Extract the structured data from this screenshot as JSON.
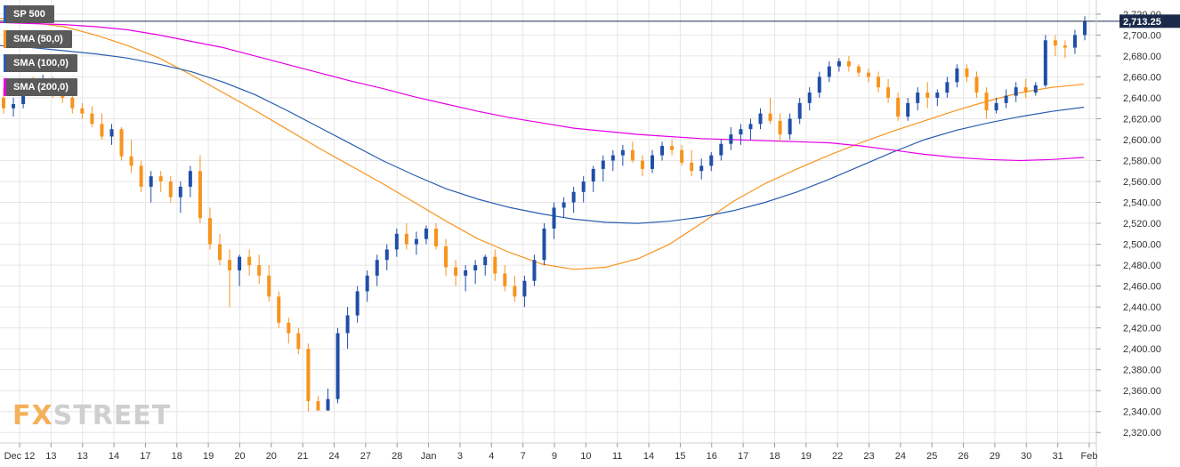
{
  "legend": {
    "items": [
      {
        "label": "SP 500",
        "color": "#2a5db0"
      },
      {
        "label": "SMA (50,0)",
        "color": "#f7941d"
      },
      {
        "label": "SMA (100,0)",
        "color": "#2a5db0"
      },
      {
        "label": "SMA (200,0)",
        "color": "#e600e6"
      }
    ]
  },
  "brand": {
    "part1": "FX",
    "part2": "STREET"
  },
  "price_tag": {
    "label": "2,713.25"
  },
  "colors": {
    "up_candle": "#1f4fa8",
    "down_candle": "#f7941d",
    "sma50": "#f7941d",
    "sma100": "#2a5db0",
    "sma200": "#e600e6",
    "grid": "#e6e6e6",
    "axis_text": "#333333",
    "price_line": "#1b2a4a",
    "price_tag_bg": "#1b2a4a"
  },
  "chart_data": {
    "type": "candlestick",
    "title": "SP 500",
    "timeframe_note": "intraday candles",
    "ylim": [
      2310,
      2725
    ],
    "y_ticks": [
      2320,
      2340,
      2360,
      2380,
      2400,
      2420,
      2440,
      2460,
      2480,
      2500,
      2520,
      2540,
      2560,
      2580,
      2600,
      2620,
      2640,
      2660,
      2680,
      2700,
      2720
    ],
    "y_tick_labels": [
      "2,320.00",
      "2,340.00",
      "2,360.00",
      "2,380.00",
      "2,400.00",
      "2,420.00",
      "2,440.00",
      "2,460.00",
      "2,480.00",
      "2,500.00",
      "2,520.00",
      "2,540.00",
      "2,560.00",
      "2,580.00",
      "2,600.00",
      "2,620.00",
      "2,640.00",
      "2,660.00",
      "2,680.00",
      "2,700.00",
      "2,720.00"
    ],
    "x_labels": [
      "Dec 12",
      "13",
      "13",
      "14",
      "17",
      "18",
      "19",
      "20",
      "20",
      "21",
      "24",
      "27",
      "28",
      "Jan",
      "3",
      "4",
      "7",
      "9",
      "10",
      "11",
      "14",
      "15",
      "16",
      "17",
      "18",
      "19",
      "22",
      "23",
      "24",
      "25",
      "26",
      "29",
      "30",
      "31",
      "Feb"
    ],
    "last_price": 2713.25,
    "series": [
      {
        "name": "SP 500",
        "kind": "ohlc",
        "values": [
          [
            2640,
            2650,
            2625,
            2630
          ],
          [
            2630,
            2640,
            2622,
            2634
          ],
          [
            2634,
            2655,
            2630,
            2650
          ],
          [
            2650,
            2660,
            2642,
            2648
          ],
          [
            2648,
            2662,
            2645,
            2655
          ],
          [
            2655,
            2660,
            2640,
            2645
          ],
          [
            2645,
            2652,
            2635,
            2640
          ],
          [
            2640,
            2645,
            2625,
            2630
          ],
          [
            2630,
            2635,
            2620,
            2625
          ],
          [
            2625,
            2632,
            2612,
            2615
          ],
          [
            2615,
            2625,
            2600,
            2603
          ],
          [
            2603,
            2615,
            2595,
            2610
          ],
          [
            2610,
            2612,
            2580,
            2584
          ],
          [
            2584,
            2600,
            2568,
            2575
          ],
          [
            2575,
            2580,
            2550,
            2555
          ],
          [
            2555,
            2570,
            2540,
            2565
          ],
          [
            2565,
            2570,
            2550,
            2560
          ],
          [
            2560,
            2565,
            2540,
            2545
          ],
          [
            2545,
            2560,
            2530,
            2555
          ],
          [
            2555,
            2575,
            2545,
            2570
          ],
          [
            2570,
            2585,
            2520,
            2525
          ],
          [
            2525,
            2535,
            2495,
            2500
          ],
          [
            2500,
            2510,
            2480,
            2485
          ],
          [
            2485,
            2495,
            2440,
            2475
          ],
          [
            2475,
            2490,
            2460,
            2488
          ],
          [
            2488,
            2495,
            2470,
            2480
          ],
          [
            2480,
            2490,
            2462,
            2470
          ],
          [
            2470,
            2480,
            2445,
            2450
          ],
          [
            2450,
            2455,
            2420,
            2425
          ],
          [
            2425,
            2430,
            2405,
            2415
          ],
          [
            2415,
            2420,
            2395,
            2400
          ],
          [
            2400,
            2405,
            2340,
            2350
          ],
          [
            2350,
            2355,
            2341,
            2341
          ],
          [
            2341,
            2362,
            2341,
            2352
          ],
          [
            2352,
            2420,
            2348,
            2415
          ],
          [
            2415,
            2440,
            2400,
            2432
          ],
          [
            2432,
            2460,
            2425,
            2455
          ],
          [
            2455,
            2475,
            2445,
            2470
          ],
          [
            2470,
            2490,
            2460,
            2485
          ],
          [
            2485,
            2500,
            2475,
            2495
          ],
          [
            2495,
            2515,
            2488,
            2510
          ],
          [
            2510,
            2520,
            2495,
            2500
          ],
          [
            2500,
            2512,
            2490,
            2505
          ],
          [
            2505,
            2518,
            2500,
            2515
          ],
          [
            2515,
            2520,
            2495,
            2498
          ],
          [
            2498,
            2505,
            2470,
            2478
          ],
          [
            2478,
            2485,
            2460,
            2470
          ],
          [
            2470,
            2480,
            2455,
            2475
          ],
          [
            2475,
            2485,
            2462,
            2480
          ],
          [
            2480,
            2490,
            2470,
            2488
          ],
          [
            2488,
            2495,
            2465,
            2472
          ],
          [
            2472,
            2480,
            2455,
            2460
          ],
          [
            2460,
            2470,
            2445,
            2450
          ],
          [
            2450,
            2470,
            2440,
            2465
          ],
          [
            2465,
            2490,
            2460,
            2485
          ],
          [
            2485,
            2520,
            2480,
            2515
          ],
          [
            2515,
            2540,
            2505,
            2535
          ],
          [
            2535,
            2545,
            2525,
            2540
          ],
          [
            2540,
            2555,
            2530,
            2550
          ],
          [
            2550,
            2565,
            2540,
            2560
          ],
          [
            2560,
            2575,
            2550,
            2572
          ],
          [
            2572,
            2585,
            2560,
            2580
          ],
          [
            2580,
            2590,
            2570,
            2585
          ],
          [
            2585,
            2595,
            2575,
            2590
          ],
          [
            2590,
            2598,
            2578,
            2580
          ],
          [
            2580,
            2585,
            2565,
            2572
          ],
          [
            2572,
            2590,
            2568,
            2585
          ],
          [
            2585,
            2598,
            2580,
            2594
          ],
          [
            2594,
            2600,
            2585,
            2590
          ],
          [
            2590,
            2595,
            2575,
            2578
          ],
          [
            2578,
            2590,
            2565,
            2570
          ],
          [
            2570,
            2582,
            2562,
            2575
          ],
          [
            2575,
            2588,
            2570,
            2585
          ],
          [
            2585,
            2600,
            2580,
            2596
          ],
          [
            2596,
            2612,
            2590,
            2605
          ],
          [
            2605,
            2615,
            2595,
            2610
          ],
          [
            2610,
            2620,
            2600,
            2615
          ],
          [
            2615,
            2630,
            2610,
            2625
          ],
          [
            2625,
            2640,
            2615,
            2618
          ],
          [
            2618,
            2625,
            2598,
            2605
          ],
          [
            2605,
            2625,
            2600,
            2620
          ],
          [
            2620,
            2640,
            2615,
            2635
          ],
          [
            2635,
            2650,
            2628,
            2645
          ],
          [
            2645,
            2665,
            2640,
            2660
          ],
          [
            2660,
            2675,
            2655,
            2670
          ],
          [
            2670,
            2678,
            2665,
            2675
          ],
          [
            2675,
            2680,
            2665,
            2670
          ],
          [
            2670,
            2672,
            2660,
            2664
          ],
          [
            2664,
            2668,
            2655,
            2660
          ],
          [
            2660,
            2665,
            2645,
            2650
          ],
          [
            2650,
            2658,
            2635,
            2640
          ],
          [
            2640,
            2645,
            2618,
            2622
          ],
          [
            2622,
            2640,
            2618,
            2635
          ],
          [
            2635,
            2650,
            2628,
            2645
          ],
          [
            2645,
            2655,
            2630,
            2640
          ],
          [
            2640,
            2648,
            2632,
            2645
          ],
          [
            2645,
            2660,
            2640,
            2655
          ],
          [
            2655,
            2672,
            2650,
            2668
          ],
          [
            2668,
            2672,
            2655,
            2660
          ],
          [
            2660,
            2665,
            2640,
            2645
          ],
          [
            2645,
            2650,
            2620,
            2628
          ],
          [
            2628,
            2640,
            2625,
            2635
          ],
          [
            2635,
            2648,
            2630,
            2642
          ],
          [
            2642,
            2655,
            2636,
            2650
          ],
          [
            2650,
            2658,
            2640,
            2645
          ],
          [
            2645,
            2655,
            2642,
            2652
          ],
          [
            2652,
            2700,
            2650,
            2695
          ],
          [
            2695,
            2700,
            2680,
            2690
          ],
          [
            2690,
            2695,
            2678,
            2688
          ],
          [
            2688,
            2705,
            2682,
            2700
          ],
          [
            2700,
            2718,
            2695,
            2713
          ]
        ]
      },
      {
        "name": "SMA (50,0)",
        "kind": "line",
        "values": [
          2716,
          2712,
          2708,
          2700,
          2690,
          2678,
          2662,
          2645,
          2628,
          2610,
          2592,
          2575,
          2558,
          2540,
          2522,
          2505,
          2492,
          2481,
          2476,
          2478,
          2486,
          2500,
          2520,
          2541,
          2558,
          2572,
          2585,
          2597,
          2608,
          2618,
          2628,
          2637,
          2645,
          2650,
          2653
        ]
      },
      {
        "name": "SMA (100,0)",
        "kind": "line",
        "values": [
          2690,
          2688,
          2685,
          2682,
          2678,
          2672,
          2665,
          2655,
          2643,
          2628,
          2612,
          2596,
          2580,
          2566,
          2553,
          2543,
          2535,
          2529,
          2524,
          2521,
          2520,
          2522,
          2526,
          2532,
          2540,
          2550,
          2562,
          2575,
          2588,
          2600,
          2609,
          2616,
          2622,
          2627,
          2631
        ]
      },
      {
        "name": "SMA (200,0)",
        "kind": "line",
        "values": [
          2712,
          2711,
          2710,
          2708,
          2705,
          2700,
          2694,
          2688,
          2680,
          2672,
          2664,
          2656,
          2649,
          2641,
          2634,
          2627,
          2621,
          2616,
          2611,
          2608,
          2605,
          2603,
          2601,
          2600,
          2599,
          2598,
          2597,
          2594,
          2590,
          2586,
          2583,
          2581,
          2580,
          2581,
          2583
        ]
      }
    ]
  }
}
